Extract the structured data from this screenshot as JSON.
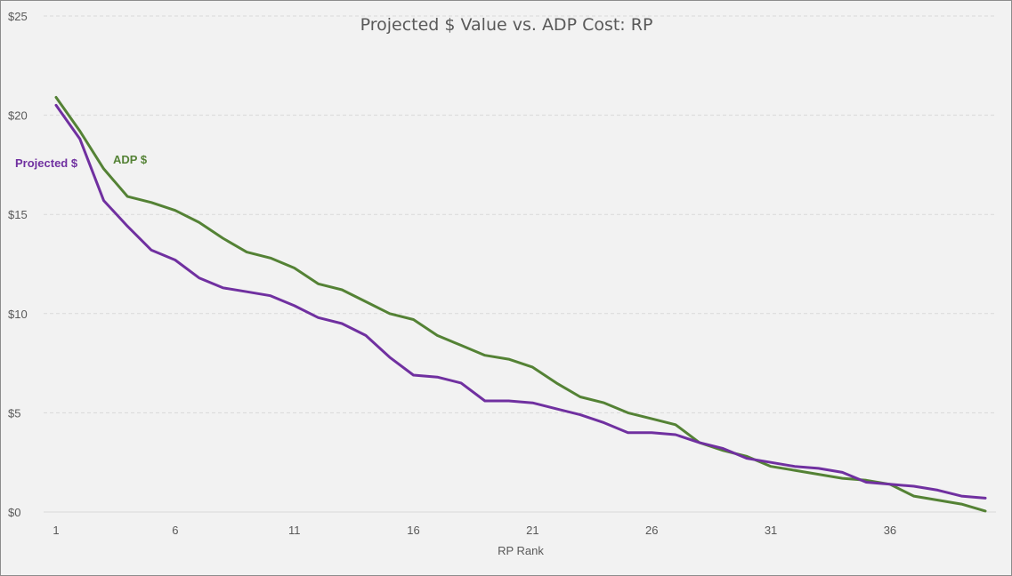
{
  "chart_data": {
    "type": "line",
    "title": "Projected $ Value vs. ADP Cost: RP",
    "xlabel": "RP Rank",
    "ylabel": "",
    "x": [
      1,
      2,
      3,
      4,
      5,
      6,
      7,
      8,
      9,
      10,
      11,
      12,
      13,
      14,
      15,
      16,
      17,
      18,
      19,
      20,
      21,
      22,
      23,
      24,
      25,
      26,
      27,
      28,
      29,
      30,
      31,
      32,
      33,
      34,
      35,
      36,
      37,
      38,
      39,
      40
    ],
    "x_ticks": [
      1,
      6,
      11,
      16,
      21,
      26,
      31,
      36
    ],
    "x_tick_labels": [
      "1",
      "6",
      "11",
      "16",
      "21",
      "26",
      "31",
      "36"
    ],
    "ylim": [
      0,
      25
    ],
    "y_ticks": [
      0,
      5,
      10,
      15,
      20,
      25
    ],
    "y_tick_labels": [
      "$0",
      "$5",
      "$10",
      "$15",
      "$20",
      "$25"
    ],
    "grid": "horizontal dashed",
    "series": [
      {
        "name": "ADP $",
        "color": "#548235",
        "values": [
          20.9,
          19.2,
          17.3,
          15.9,
          15.6,
          15.2,
          14.6,
          13.8,
          13.1,
          12.8,
          12.3,
          11.5,
          11.2,
          10.6,
          10.0,
          9.7,
          8.9,
          8.4,
          7.9,
          7.7,
          7.3,
          6.5,
          5.8,
          5.5,
          5.0,
          4.7,
          4.4,
          3.5,
          3.1,
          2.8,
          2.3,
          2.1,
          1.9,
          1.7,
          1.6,
          1.4,
          0.8,
          0.6,
          0.4,
          0.05
        ]
      },
      {
        "name": "Projected $",
        "color": "#7030a0",
        "values": [
          20.5,
          18.8,
          15.7,
          14.4,
          13.2,
          12.7,
          11.8,
          11.3,
          11.1,
          10.9,
          10.4,
          9.8,
          9.5,
          8.9,
          7.8,
          6.9,
          6.8,
          6.5,
          5.6,
          5.6,
          5.5,
          5.2,
          4.9,
          4.5,
          4.0,
          4.0,
          3.9,
          3.5,
          3.2,
          2.7,
          2.5,
          2.3,
          2.2,
          2.0,
          1.5,
          1.4,
          1.3,
          1.1,
          0.8,
          0.7
        ]
      }
    ]
  }
}
